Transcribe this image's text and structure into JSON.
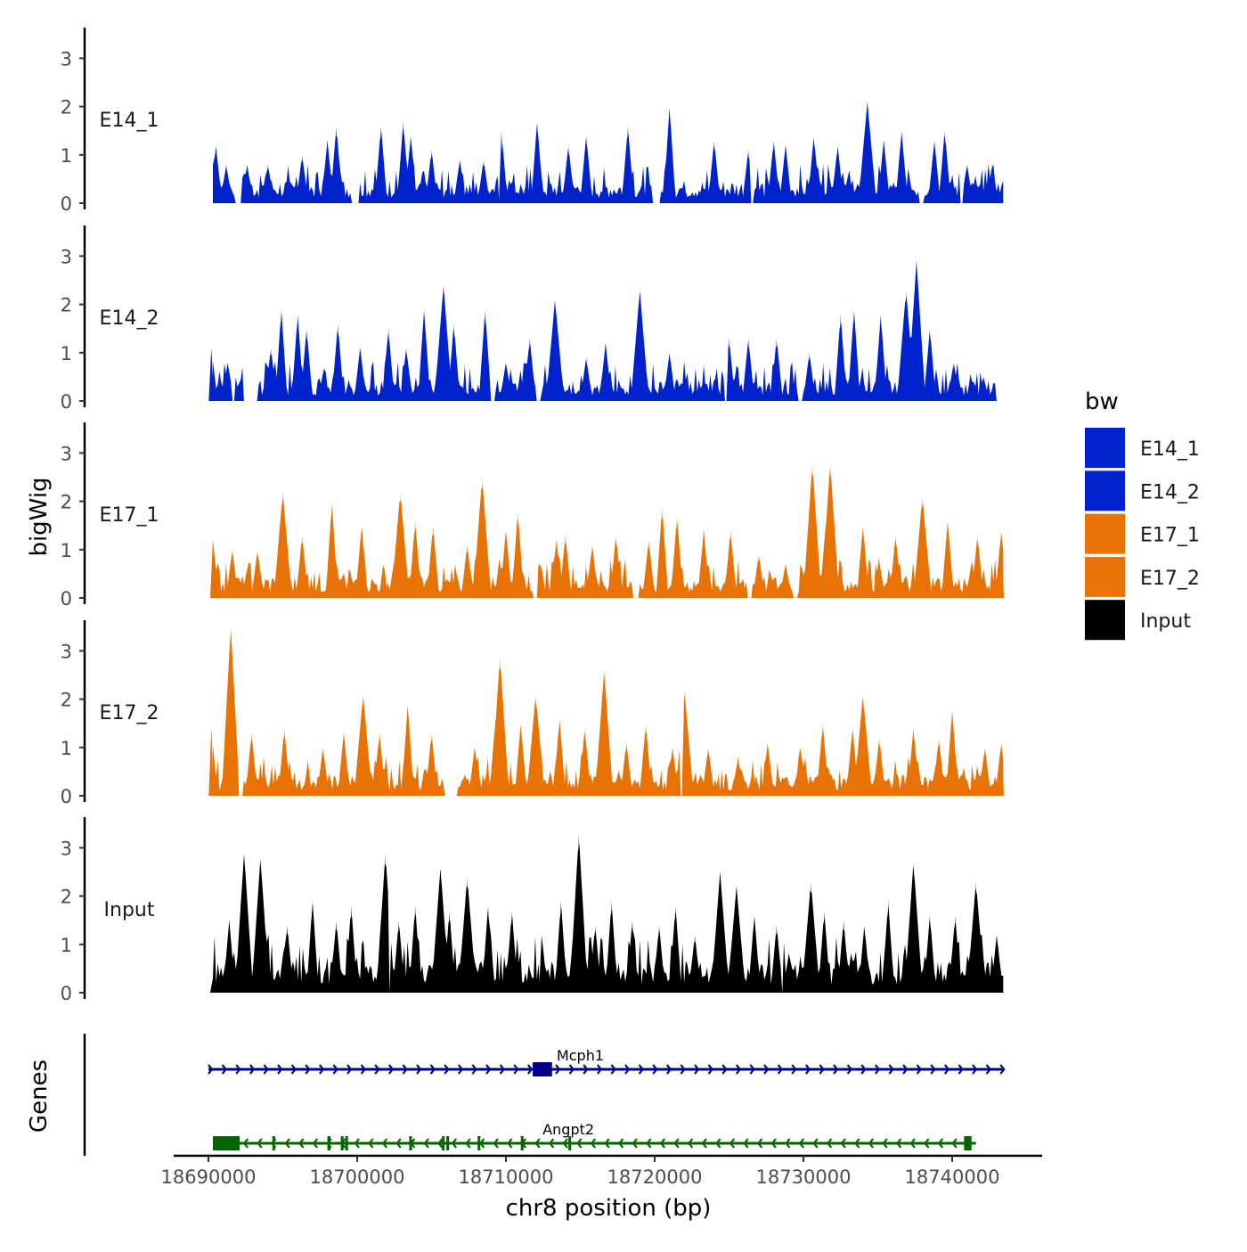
{
  "chart_data": {
    "type": "area",
    "title": "",
    "xlabel": "chr8 position (bp)",
    "ylabel": "bigWig",
    "genes_label": "Genes",
    "xlim": [
      18690000,
      18743500
    ],
    "ylim": [
      0,
      3.6
    ],
    "x_ticks": [
      18690000,
      18700000,
      18710000,
      18720000,
      18730000,
      18740000
    ],
    "x_tick_labels": [
      "18690000",
      "18700000",
      "18710000",
      "18720000",
      "18730000",
      "18740000"
    ],
    "y_ticks": [
      0,
      1,
      2,
      3
    ],
    "y_tick_labels": [
      "0",
      "1",
      "2",
      "3"
    ],
    "legend": {
      "title": "bw",
      "position": "right",
      "items": [
        {
          "label": "E14_1",
          "color": "#0022cc"
        },
        {
          "label": "E14_2",
          "color": "#0022cc"
        },
        {
          "label": "E17_1",
          "color": "#e87304"
        },
        {
          "label": "E17_2",
          "color": "#e87304"
        },
        {
          "label": "Input",
          "color": "#000000"
        }
      ]
    },
    "series": [
      {
        "name": "E14_1",
        "color": "#0022cc",
        "peaks": [
          [
            18690500,
            1.2
          ],
          [
            18691200,
            0.8
          ],
          [
            18692600,
            0.8
          ],
          [
            18694000,
            0.8
          ],
          [
            18696300,
            1.0
          ],
          [
            18698000,
            1.3
          ],
          [
            18698600,
            1.6
          ],
          [
            18701600,
            1.6
          ],
          [
            18703100,
            1.7
          ],
          [
            18703600,
            1.4
          ],
          [
            18705000,
            1.1
          ],
          [
            18706900,
            0.9
          ],
          [
            18708500,
            0.9
          ],
          [
            18709700,
            1.5
          ],
          [
            18712100,
            1.7
          ],
          [
            18714200,
            1.2
          ],
          [
            18715400,
            1.4
          ],
          [
            18718200,
            1.6
          ],
          [
            18721000,
            2.0
          ],
          [
            18724000,
            1.3
          ],
          [
            18726300,
            1.1
          ],
          [
            18728000,
            1.3
          ],
          [
            18728800,
            1.2
          ],
          [
            18730700,
            1.4
          ],
          [
            18732300,
            1.2
          ],
          [
            18734300,
            2.1
          ],
          [
            18735400,
            1.3
          ],
          [
            18736600,
            1.5
          ],
          [
            18738800,
            1.3
          ],
          [
            18739500,
            1.5
          ],
          [
            18741000,
            0.8
          ],
          [
            18742700,
            0.8
          ]
        ],
        "gaps": [
          [
            18691800,
            18692200
          ],
          [
            18699600,
            18700100
          ],
          [
            18709500,
            18709700
          ],
          [
            18719800,
            18720400
          ],
          [
            18726400,
            18726700
          ],
          [
            18737800,
            18738100
          ],
          [
            18740500,
            18740700
          ]
        ]
      },
      {
        "name": "E14_2",
        "color": "#0022cc",
        "peaks": [
          [
            18690200,
            1.1
          ],
          [
            18691300,
            0.8
          ],
          [
            18694200,
            1.1
          ],
          [
            18694900,
            1.9
          ],
          [
            18696000,
            1.8
          ],
          [
            18696600,
            1.5
          ],
          [
            18698700,
            1.6
          ],
          [
            18700200,
            1.1
          ],
          [
            18702100,
            1.5
          ],
          [
            18703300,
            1.1
          ],
          [
            18704500,
            1.9
          ],
          [
            18705800,
            2.4
          ],
          [
            18706500,
            1.6
          ],
          [
            18708600,
            1.9
          ],
          [
            18710000,
            0.8
          ],
          [
            18711600,
            1.3
          ],
          [
            18713300,
            2.1
          ],
          [
            18715400,
            0.9
          ],
          [
            18716700,
            1.2
          ],
          [
            18719000,
            2.3
          ],
          [
            18721000,
            1.0
          ],
          [
            18722000,
            0.5
          ],
          [
            18724100,
            0.5
          ],
          [
            18725000,
            1.3
          ],
          [
            18726300,
            1.3
          ],
          [
            18728200,
            1.3
          ],
          [
            18730400,
            1.0
          ],
          [
            18732500,
            1.8
          ],
          [
            18733400,
            1.9
          ],
          [
            18735200,
            1.8
          ],
          [
            18736900,
            2.3
          ],
          [
            18737600,
            2.9
          ],
          [
            18738500,
            1.5
          ],
          [
            18740100,
            0.8
          ],
          [
            18742100,
            0.5
          ]
        ],
        "gaps": [
          [
            18691600,
            18691800
          ],
          [
            18692300,
            18693300
          ],
          [
            18709000,
            18709300
          ],
          [
            18712000,
            18712300
          ],
          [
            18724700,
            18724900
          ],
          [
            18729600,
            18730000
          ],
          [
            18742900,
            18743500
          ]
        ]
      },
      {
        "name": "E17_1",
        "color": "#e87304",
        "peaks": [
          [
            18690300,
            1.2
          ],
          [
            18691600,
            1.0
          ],
          [
            18693300,
            1.0
          ],
          [
            18695000,
            2.2
          ],
          [
            18696300,
            1.3
          ],
          [
            18698300,
            2.0
          ],
          [
            18700300,
            1.5
          ],
          [
            18702900,
            2.2
          ],
          [
            18703900,
            1.6
          ],
          [
            18705100,
            1.5
          ],
          [
            18707400,
            1.1
          ],
          [
            18708400,
            2.5
          ],
          [
            18710000,
            1.4
          ],
          [
            18710800,
            1.8
          ],
          [
            18713400,
            1.2
          ],
          [
            18714000,
            1.3
          ],
          [
            18715800,
            1.1
          ],
          [
            18717400,
            1.3
          ],
          [
            18719600,
            1.2
          ],
          [
            18720500,
            1.9
          ],
          [
            18721500,
            1.7
          ],
          [
            18723300,
            1.4
          ],
          [
            18725100,
            1.4
          ],
          [
            18727000,
            0.9
          ],
          [
            18728800,
            0.7
          ],
          [
            18730600,
            2.8
          ],
          [
            18731500,
            1.5
          ],
          [
            18731800,
            2.8
          ],
          [
            18734000,
            1.5
          ],
          [
            18736200,
            1.3
          ],
          [
            18738000,
            2.1
          ],
          [
            18739700,
            1.6
          ],
          [
            18741700,
            1.3
          ],
          [
            18743300,
            1.4
          ]
        ],
        "gaps": [
          [
            18711800,
            18712100
          ],
          [
            18718500,
            18718900
          ],
          [
            18726200,
            18726500
          ],
          [
            18729300,
            18729600
          ]
        ]
      },
      {
        "name": "E17_2",
        "color": "#e87304",
        "peaks": [
          [
            18690200,
            1.4
          ],
          [
            18691500,
            3.5
          ],
          [
            18692900,
            1.3
          ],
          [
            18695100,
            1.4
          ],
          [
            18697700,
            1.0
          ],
          [
            18699100,
            1.3
          ],
          [
            18700400,
            2.1
          ],
          [
            18701500,
            1.3
          ],
          [
            18703400,
            1.9
          ],
          [
            18705000,
            1.3
          ],
          [
            18707900,
            1.0
          ],
          [
            18709300,
            1.6
          ],
          [
            18709600,
            2.9
          ],
          [
            18711000,
            1.5
          ],
          [
            18712000,
            2.1
          ],
          [
            18713600,
            1.6
          ],
          [
            18715300,
            1.4
          ],
          [
            18716600,
            2.6
          ],
          [
            18718100,
            1.1
          ],
          [
            18719400,
            1.5
          ],
          [
            18721200,
            1.0
          ],
          [
            18722000,
            2.2
          ],
          [
            18723600,
            1.0
          ],
          [
            18725600,
            0.8
          ],
          [
            18727600,
            1.1
          ],
          [
            18729800,
            1.0
          ],
          [
            18731300,
            1.5
          ],
          [
            18733300,
            1.4
          ],
          [
            18734000,
            2.1
          ],
          [
            18735100,
            1.2
          ],
          [
            18737400,
            1.4
          ],
          [
            18739100,
            1.2
          ],
          [
            18740000,
            1.8
          ],
          [
            18742200,
            1.0
          ],
          [
            18743300,
            1.1
          ]
        ],
        "gaps": [
          [
            18692000,
            18692300
          ],
          [
            18705900,
            18706700
          ],
          [
            18721700,
            18721900
          ]
        ]
      },
      {
        "name": "Input",
        "color": "#000000",
        "peaks": [
          [
            18690300,
            0.3
          ],
          [
            18691400,
            1.5
          ],
          [
            18692400,
            2.9
          ],
          [
            18693500,
            2.8
          ],
          [
            18695300,
            1.4
          ],
          [
            18697000,
            1.9
          ],
          [
            18698600,
            1.5
          ],
          [
            18699600,
            1.8
          ],
          [
            18701900,
            2.9
          ],
          [
            18702800,
            1.5
          ],
          [
            18703900,
            1.8
          ],
          [
            18705600,
            2.6
          ],
          [
            18706200,
            1.7
          ],
          [
            18707400,
            2.4
          ],
          [
            18708800,
            1.8
          ],
          [
            18710400,
            1.7
          ],
          [
            18712400,
            1.2
          ],
          [
            18713700,
            1.9
          ],
          [
            18714900,
            3.3
          ],
          [
            18716000,
            1.4
          ],
          [
            18717100,
            1.9
          ],
          [
            18718500,
            1.5
          ],
          [
            18720300,
            1.4
          ],
          [
            18721400,
            1.8
          ],
          [
            18722700,
            1.2
          ],
          [
            18724400,
            2.5
          ],
          [
            18725500,
            2.2
          ],
          [
            18726700,
            1.6
          ],
          [
            18728200,
            1.4
          ],
          [
            18730500,
            2.3
          ],
          [
            18731400,
            1.7
          ],
          [
            18732700,
            1.5
          ],
          [
            18734100,
            1.4
          ],
          [
            18735700,
            1.9
          ],
          [
            18737400,
            2.7
          ],
          [
            18738500,
            1.6
          ],
          [
            18740200,
            1.6
          ],
          [
            18741600,
            2.3
          ],
          [
            18743000,
            1.2
          ]
        ],
        "gaps": [
          [
            18702100,
            18702200
          ],
          [
            18712200,
            18712300
          ],
          [
            18728500,
            18728600
          ]
        ]
      }
    ],
    "genes": [
      {
        "name": "Mcph1",
        "strand": "+",
        "color": "#00008b",
        "start": 18690000,
        "end": 18743500,
        "exons": [
          [
            18711800,
            18713100
          ]
        ],
        "label_x": 18715000
      },
      {
        "name": "Angpt2",
        "strand": "-",
        "color": "#006400",
        "start": 18690300,
        "end": 18741600,
        "exons": [
          [
            18690300,
            18692100
          ],
          [
            18694300,
            18694400
          ],
          [
            18698000,
            18698200
          ],
          [
            18698900,
            18699000
          ],
          [
            18699200,
            18699300
          ],
          [
            18703500,
            18703600
          ],
          [
            18705700,
            18705800
          ],
          [
            18706000,
            18706100
          ],
          [
            18708100,
            18708200
          ],
          [
            18711000,
            18711100
          ],
          [
            18714200,
            18714300
          ],
          [
            18740800,
            18741300
          ]
        ],
        "label_x": 18714200
      }
    ]
  }
}
